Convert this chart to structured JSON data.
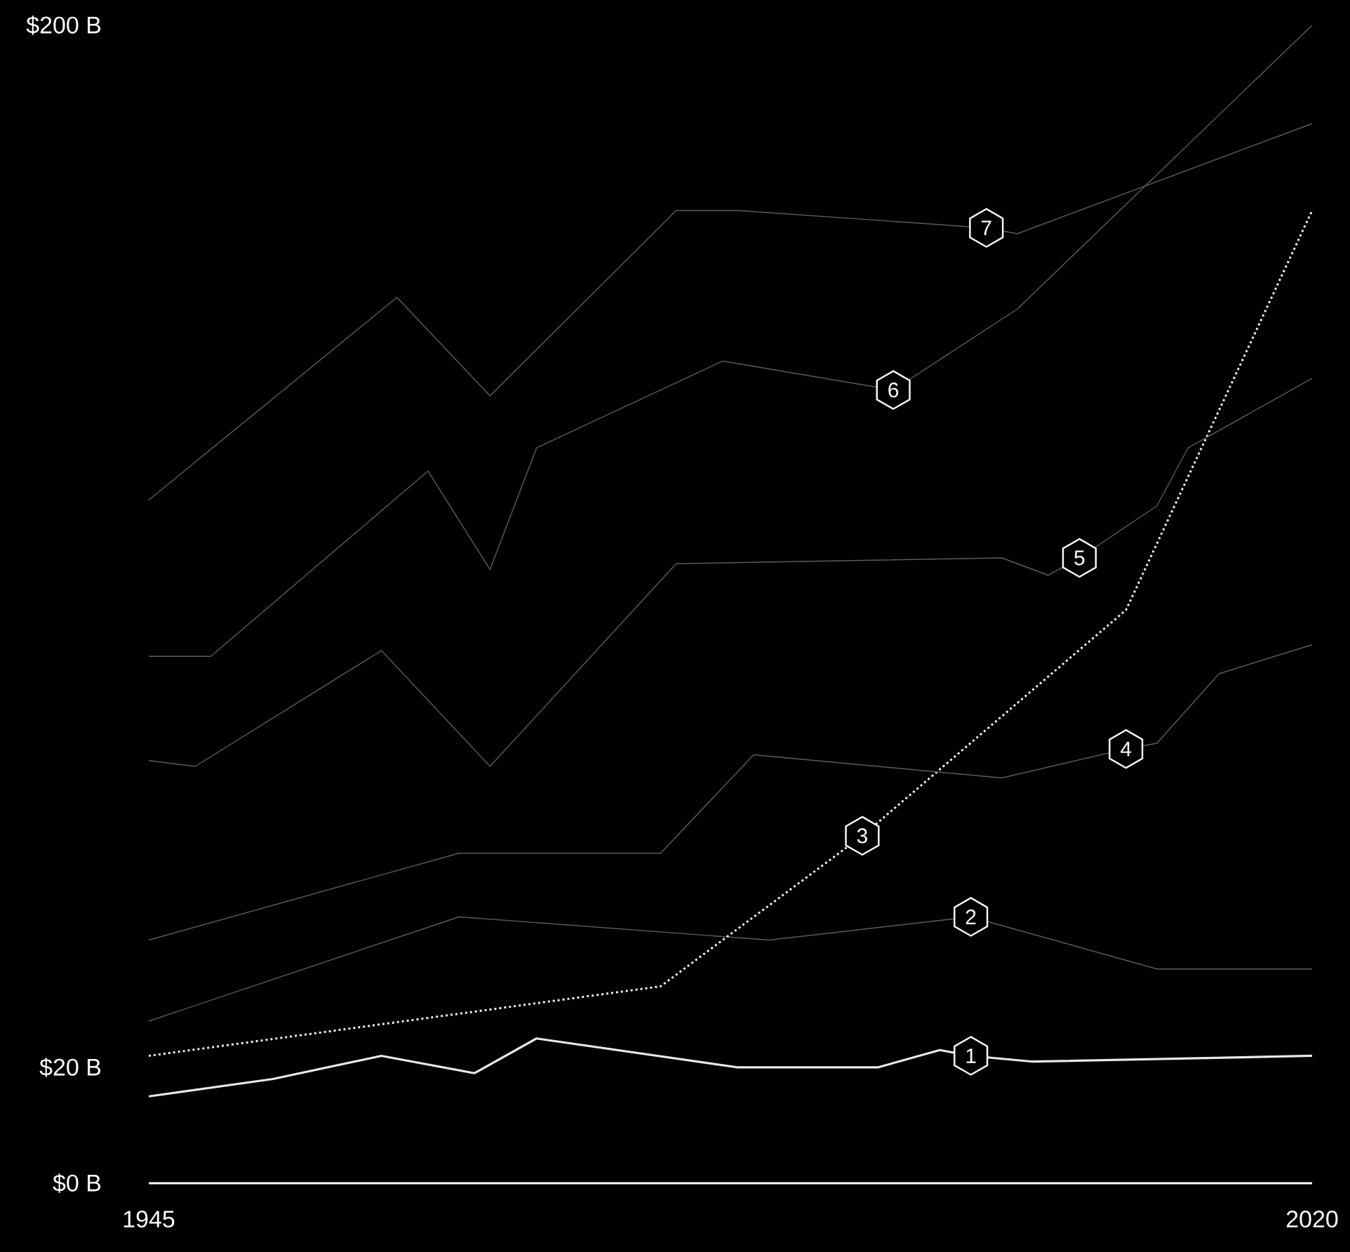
{
  "chart_data": {
    "type": "line",
    "xlim": [
      1945,
      2020
    ],
    "xticks": [
      1945,
      2020
    ],
    "ylim": [
      0,
      200
    ],
    "yticks": [
      {
        "value": 0,
        "label": "$0 B"
      },
      {
        "value": 20,
        "label": "$20 B"
      },
      {
        "value": 200,
        "label": "$200 B"
      }
    ],
    "series": [
      {
        "color": "#e8e8e8",
        "line_style": "solid",
        "x": [
          1945,
          1953,
          1960,
          1966,
          1970,
          1983,
          1992,
          1996,
          1998,
          2002,
          2020
        ],
        "values": [
          15,
          18,
          22,
          19,
          25,
          20,
          20,
          23,
          22,
          21,
          22
        ]
      },
      {
        "color": "#5c5c5c",
        "line_style": "solid",
        "x": [
          1945,
          1965,
          1985,
          1998,
          2010,
          2020
        ],
        "values": [
          28,
          46,
          42,
          46,
          37,
          37
        ]
      },
      {
        "color": "#f0f0f0",
        "line_style": "dotted",
        "x": [
          1945,
          1978,
          1991,
          2008,
          2020
        ],
        "values": [
          22,
          34,
          60,
          99,
          168
        ]
      },
      {
        "color": "#5c5c5c",
        "line_style": "solid",
        "x": [
          1945,
          1965,
          1978,
          1984,
          2000,
          2008,
          2010,
          2014,
          2020
        ],
        "values": [
          42,
          57,
          57,
          74,
          70,
          75,
          76,
          88,
          93
        ]
      },
      {
        "color": "#5c5c5c",
        "line_style": "solid",
        "x": [
          1945,
          1948,
          1960,
          1967,
          1979,
          2000,
          2003,
          2005,
          2010,
          2012,
          2020
        ],
        "values": [
          73,
          72,
          92,
          72,
          107,
          108,
          105,
          108,
          117,
          127,
          139
        ]
      },
      {
        "color": "#5c5c5c",
        "line_style": "solid",
        "x": [
          1945,
          1949,
          1963,
          1967,
          1970,
          1982,
          1993,
          2001,
          2020
        ],
        "values": [
          91,
          91,
          123,
          106,
          127,
          142,
          137,
          151,
          200
        ]
      },
      {
        "color": "#5c5c5c",
        "line_style": "solid",
        "x": [
          1945,
          1961,
          1967,
          1979,
          1983,
          1999,
          2001,
          2020
        ],
        "values": [
          118,
          153,
          136,
          168,
          168,
          165,
          164,
          183
        ]
      }
    ],
    "annotations": [
      {
        "text": "1",
        "x": 1998,
        "y": 22
      },
      {
        "text": "2",
        "x": 1998,
        "y": 46
      },
      {
        "text": "3",
        "x": 1991,
        "y": 60
      },
      {
        "text": "4",
        "x": 2008,
        "y": 75
      },
      {
        "text": "5",
        "x": 2005,
        "y": 108
      },
      {
        "text": "6",
        "x": 1993,
        "y": 137
      },
      {
        "text": "7",
        "x": 1999,
        "y": 165
      }
    ]
  }
}
